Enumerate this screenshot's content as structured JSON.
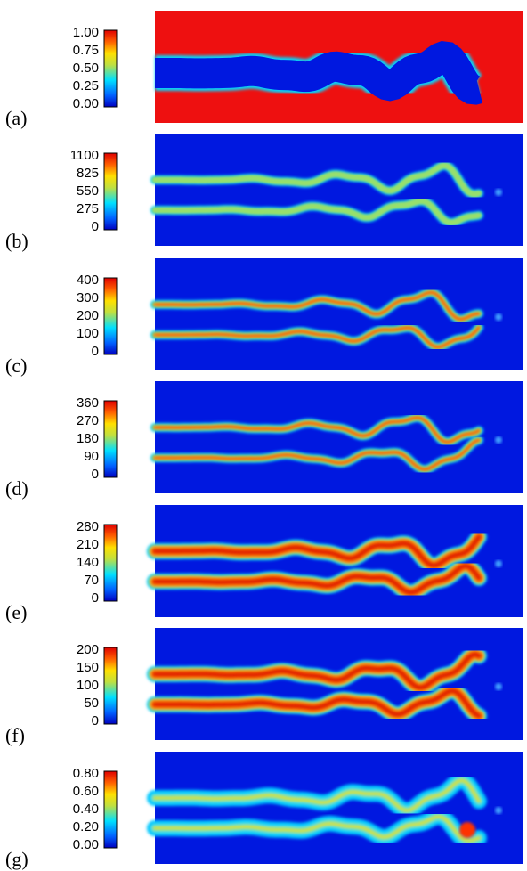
{
  "panels": [
    {
      "label": "(a)",
      "colorbar_ticks": [
        "1.00",
        "0.75",
        "0.50",
        "0.25",
        "0.00"
      ]
    },
    {
      "label": "(b)",
      "colorbar_ticks": [
        "1100",
        "825",
        "550",
        "275",
        "0"
      ]
    },
    {
      "label": "(c)",
      "colorbar_ticks": [
        "400",
        "300",
        "200",
        "100",
        "0"
      ]
    },
    {
      "label": "(d)",
      "colorbar_ticks": [
        "360",
        "270",
        "180",
        "90",
        "0"
      ]
    },
    {
      "label": "(e)",
      "colorbar_ticks": [
        "280",
        "210",
        "140",
        "70",
        "0"
      ]
    },
    {
      "label": "(f)",
      "colorbar_ticks": [
        "200",
        "150",
        "100",
        "50",
        "0"
      ]
    },
    {
      "label": "(g)",
      "colorbar_ticks": [
        "0.80",
        "0.60",
        "0.40",
        "0.20",
        "0.00"
      ]
    }
  ]
}
